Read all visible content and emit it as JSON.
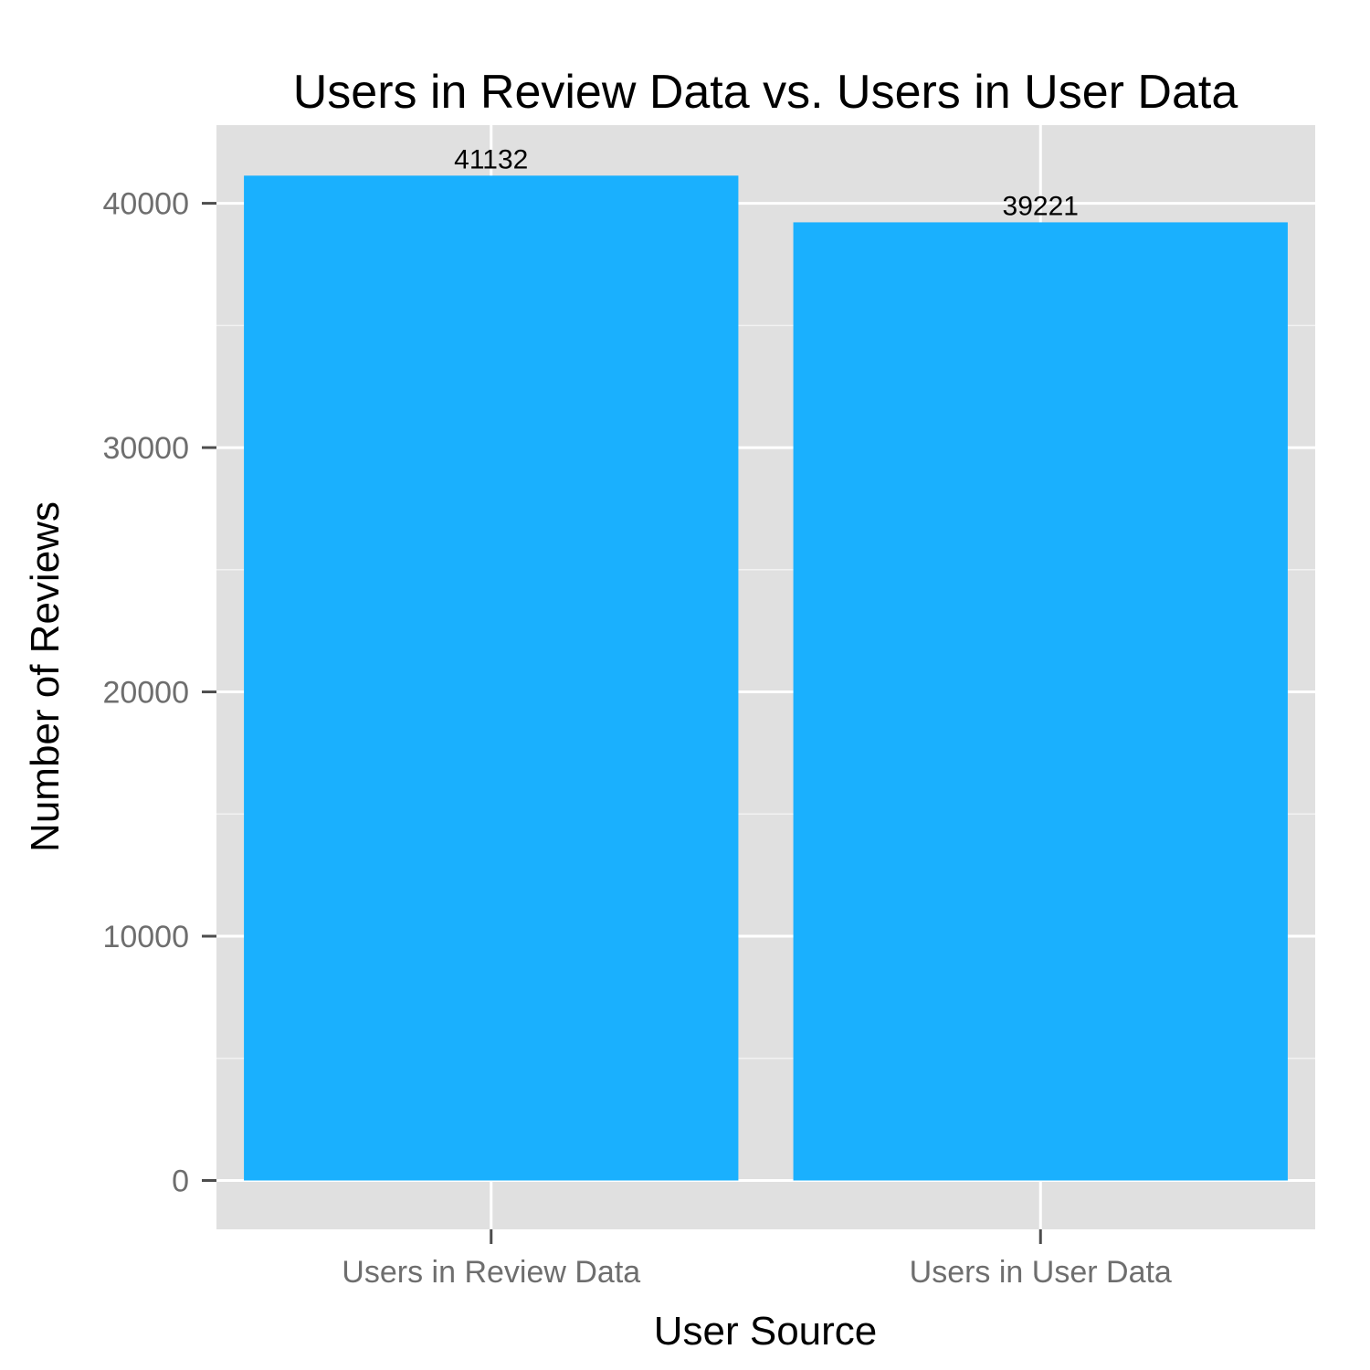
{
  "chart_data": {
    "type": "bar",
    "title": "Users in Review Data vs. Users in User Data",
    "xlabel": "User Source",
    "ylabel": "Number of Reviews",
    "categories": [
      "Users in Review Data",
      "Users in User Data"
    ],
    "values": [
      41132,
      39221
    ],
    "data_labels": [
      "41132",
      "39221"
    ],
    "ylim": [
      -2000,
      43200
    ],
    "yticks": [
      0,
      10000,
      20000,
      30000,
      40000
    ],
    "ytick_labels": [
      "0",
      "10000",
      "20000",
      "30000",
      "40000"
    ],
    "grid": true,
    "legend": "none",
    "colors": {
      "bar": "#1ab0fe",
      "panel_background": "#e0e0e0",
      "grid_major": "#ffffff",
      "grid_minor": "#f2f2f2"
    }
  }
}
